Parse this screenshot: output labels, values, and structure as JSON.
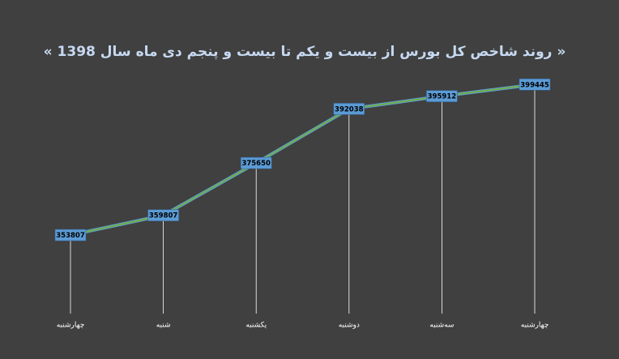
{
  "chart_data": {
    "type": "line",
    "title": "« روند شاخص کل بورس از بیست و یکم تا بیست و پنجم دی ماه سال 1398 »",
    "categories": [
      "چهارشنبه",
      "شنبه",
      "یکشنبه",
      "دوشنبه",
      "سه‌شنبه",
      "چهارشنبه"
    ],
    "values": [
      353807,
      359807,
      375650,
      392038,
      395912,
      399445
    ],
    "color": "#70ad47",
    "label_color": "#5b9bd5",
    "ylim": [
      330000,
      400000
    ],
    "drop_lines": true
  }
}
